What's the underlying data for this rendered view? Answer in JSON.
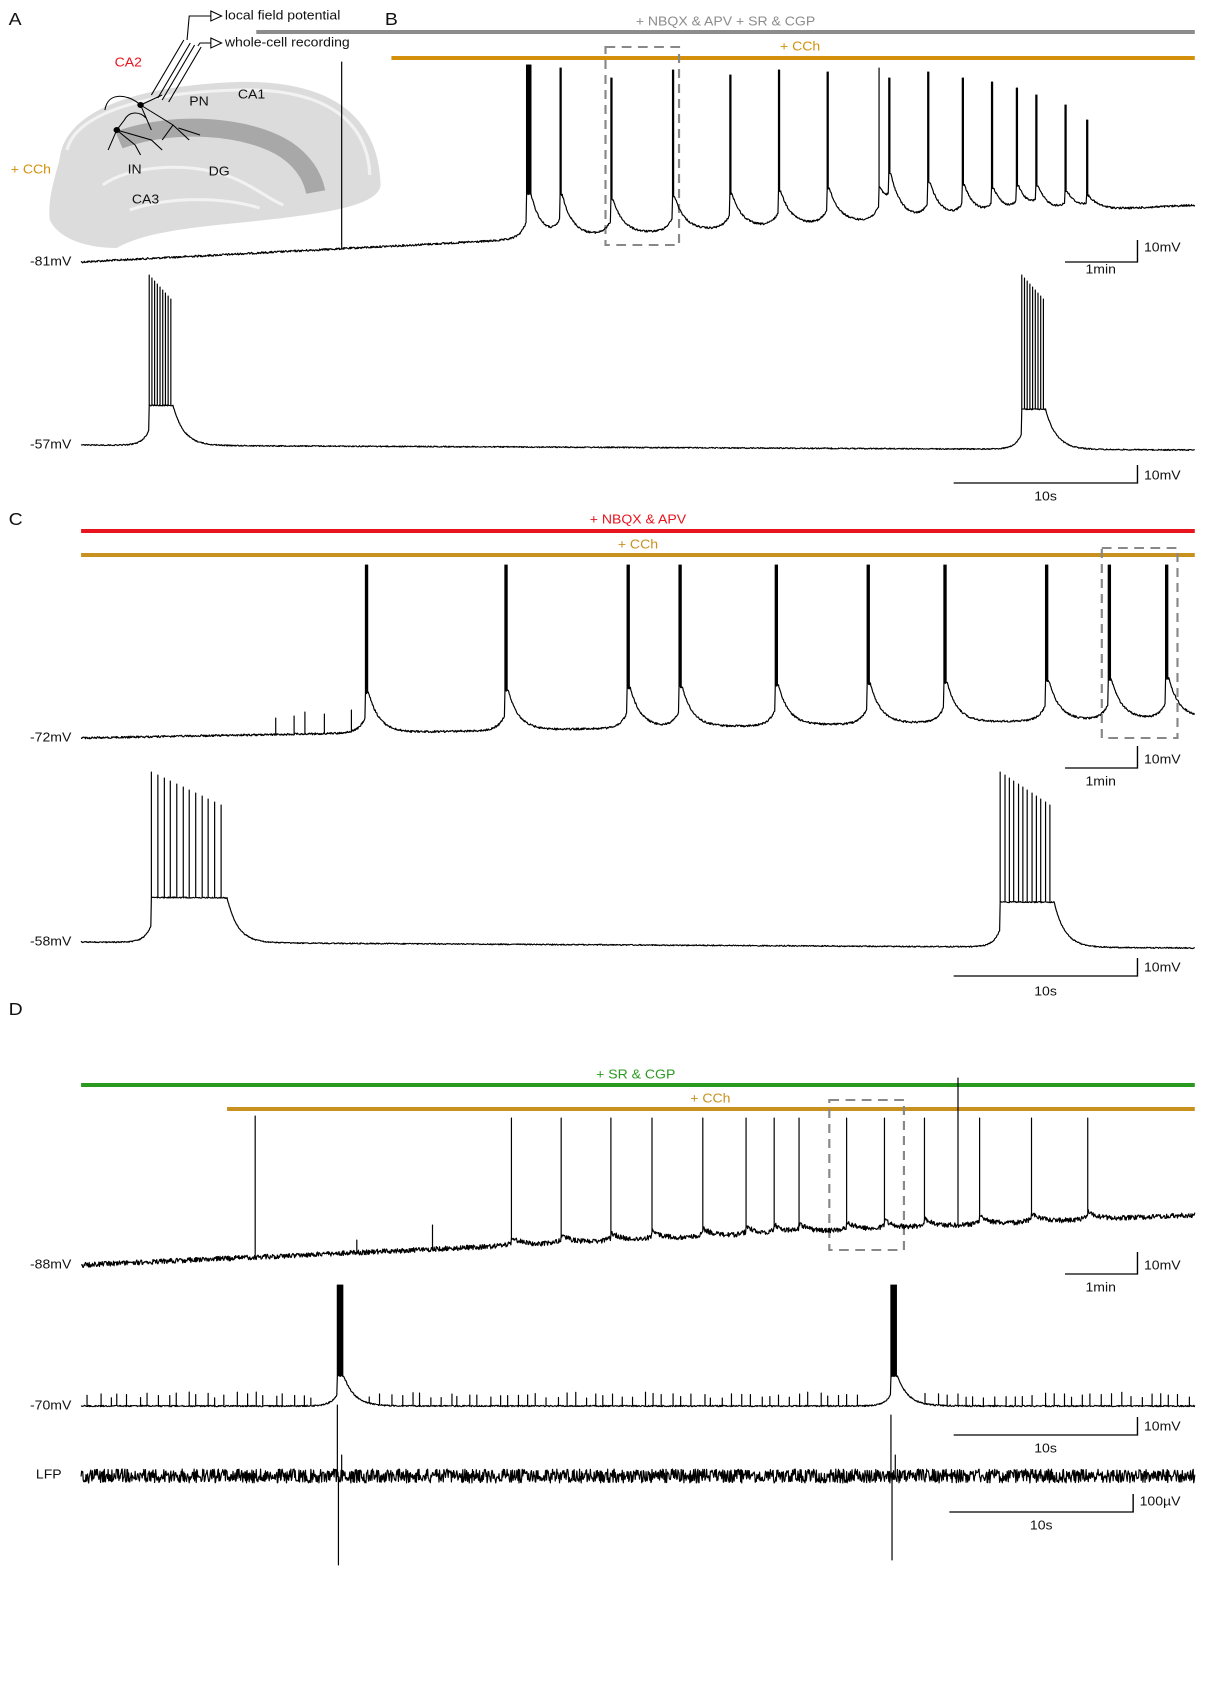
{
  "panel_a": {
    "letter": "A",
    "condition": "+ CCh",
    "electrodes": [
      "local field potential",
      "whole-cell recording"
    ],
    "regions": [
      "CA2",
      "PN",
      "CA1",
      "IN",
      "DG",
      "CA3"
    ]
  },
  "panel_b": {
    "letter": "B",
    "bars": [
      "+ NBQX & APV + SR & CGP",
      "+ CCh"
    ],
    "traces": [
      {
        "potential": "-81mV",
        "scale_v": "10mV",
        "scale_t": "1min"
      },
      {
        "potential": "-57mV",
        "scale_v": "10mV",
        "scale_t": "10s"
      }
    ]
  },
  "panel_c": {
    "letter": "C",
    "bars": [
      "+ NBQX & APV",
      "+ CCh"
    ],
    "traces": [
      {
        "potential": "-72mV",
        "scale_v": "10mV",
        "scale_t": "1min"
      },
      {
        "potential": "-58mV",
        "scale_v": "10mV",
        "scale_t": "10s"
      }
    ]
  },
  "panel_d": {
    "letter": "D",
    "bars": [
      "+ SR & CGP",
      "+ CCh"
    ],
    "traces": [
      {
        "potential": "-88mV",
        "scale_v": "10mV",
        "scale_t": "1min"
      },
      {
        "potential": "-70mV",
        "scale_v": "10mV",
        "scale_t": "10s"
      },
      {
        "label": "LFP",
        "scale_v": "100µV",
        "scale_t": "10s"
      }
    ]
  }
}
